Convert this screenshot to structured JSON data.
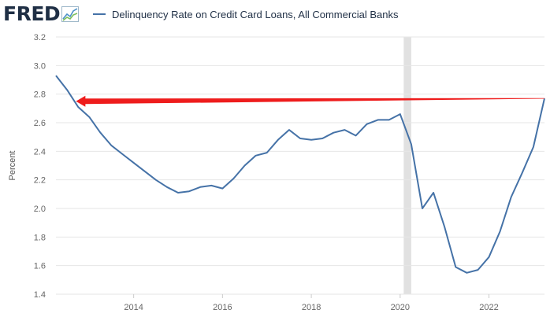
{
  "logo": {
    "text": "FRED"
  },
  "colors": {
    "series": "#4572a7",
    "grid": "#e6e6e6",
    "recession": "#e1e1e1",
    "arrow": "#ee1c1c",
    "logo": "#1f2f45"
  },
  "icons": {
    "logo_mark": "line-chart-icon"
  },
  "chart_data": {
    "type": "line",
    "title": "",
    "xlabel": "",
    "ylabel": "Percent",
    "ylim": [
      1.4,
      3.2
    ],
    "yticks": [
      1.4,
      1.6,
      1.8,
      2.0,
      2.2,
      2.4,
      2.6,
      2.8,
      3.0,
      3.2
    ],
    "ytick_labels": [
      "1.4",
      "1.6",
      "1.8",
      "2.0",
      "2.2",
      "2.4",
      "2.6",
      "2.8",
      "3.0",
      "3.2"
    ],
    "xlim": [
      2012.25,
      2023.25
    ],
    "xticks": [
      2014,
      2016,
      2018,
      2020,
      2022
    ],
    "xtick_labels": [
      "2014",
      "2016",
      "2018",
      "2020",
      "2022"
    ],
    "grid": true,
    "legend_position": "top",
    "series": [
      {
        "name": "Delinquency Rate on Credit Card Loans, All Commercial Banks",
        "x": [
          2012.25,
          2012.5,
          2012.75,
          2013.0,
          2013.25,
          2013.5,
          2013.75,
          2014.0,
          2014.25,
          2014.5,
          2014.75,
          2015.0,
          2015.25,
          2015.5,
          2015.75,
          2016.0,
          2016.25,
          2016.5,
          2016.75,
          2017.0,
          2017.25,
          2017.5,
          2017.75,
          2018.0,
          2018.25,
          2018.5,
          2018.75,
          2019.0,
          2019.25,
          2019.5,
          2019.75,
          2020.0,
          2020.25,
          2020.5,
          2020.75,
          2021.0,
          2021.25,
          2021.5,
          2021.75,
          2022.0,
          2022.25,
          2022.5,
          2022.75,
          2023.0,
          2023.25
        ],
        "values": [
          2.93,
          2.83,
          2.71,
          2.64,
          2.53,
          2.44,
          2.38,
          2.32,
          2.26,
          2.2,
          2.15,
          2.11,
          2.12,
          2.15,
          2.16,
          2.14,
          2.21,
          2.3,
          2.37,
          2.39,
          2.48,
          2.55,
          2.49,
          2.48,
          2.49,
          2.53,
          2.55,
          2.51,
          2.59,
          2.62,
          2.62,
          2.66,
          2.45,
          2.0,
          2.11,
          1.87,
          1.59,
          1.55,
          1.57,
          1.66,
          1.84,
          2.08,
          2.25,
          2.43,
          2.77
        ]
      }
    ],
    "recessions": [
      [
        2020.08,
        2020.25
      ]
    ],
    "annotations": [
      {
        "type": "arrow",
        "from_x": 2023.25,
        "from_y": 2.77,
        "to_x": 2012.7,
        "to_y": 2.75
      }
    ]
  }
}
